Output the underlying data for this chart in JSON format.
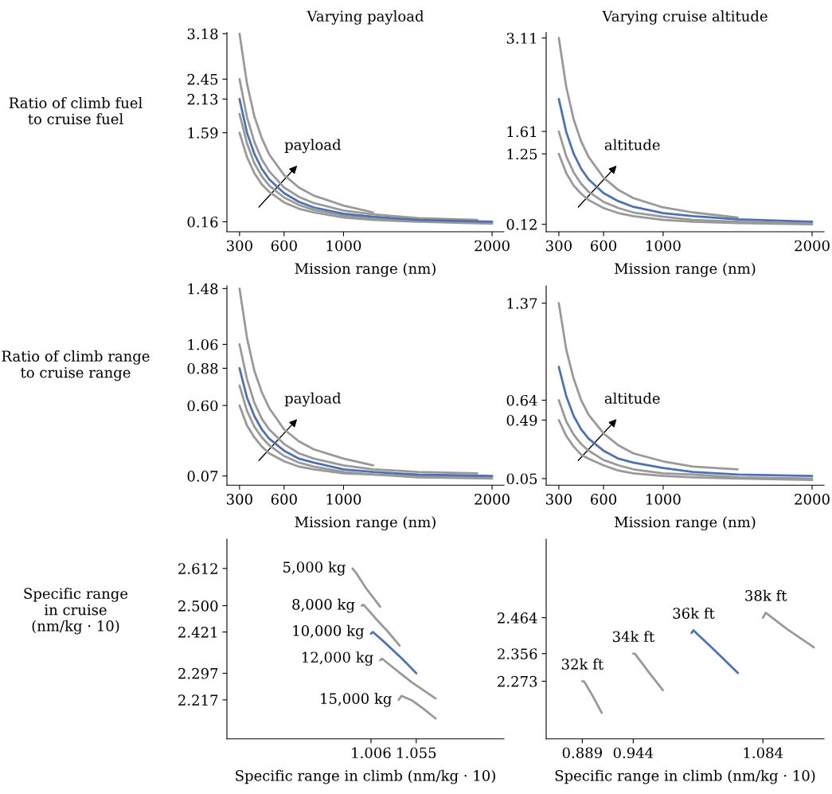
{
  "chart_data": [
    {
      "type": "line",
      "title": "Varying payload",
      "xlabel": "Mission range (nm)",
      "ylabel": "Ratio of climb fuel\nto cruise fuel",
      "xlim": [
        215,
        2080
      ],
      "ylim": [
        0,
        3.2
      ],
      "xticks": [
        300,
        600,
        1000,
        2000
      ],
      "yticks": [
        0.16,
        1.59,
        2.13,
        2.45,
        3.18
      ],
      "annotations": [
        "payload"
      ],
      "series": [
        {
          "color": "#999999",
          "x": [
            300,
            350,
            400,
            450,
            500,
            600,
            700,
            800,
            1000,
            1200
          ],
          "values": [
            3.18,
            2.38,
            1.85,
            1.5,
            1.24,
            0.91,
            0.71,
            0.58,
            0.42,
            0.31
          ]
        },
        {
          "color": "#999999",
          "x": [
            300,
            350,
            400,
            450,
            500,
            600,
            700,
            800,
            1000,
            1200,
            1500,
            1900
          ],
          "values": [
            2.45,
            1.84,
            1.44,
            1.16,
            0.97,
            0.71,
            0.56,
            0.46,
            0.34,
            0.28,
            0.22,
            0.19
          ]
        },
        {
          "color": "#999999",
          "x": [
            300,
            350,
            400,
            450,
            500,
            600,
            700,
            800,
            1000,
            1200,
            1500,
            2000
          ],
          "values": [
            1.89,
            1.42,
            1.1,
            0.89,
            0.74,
            0.55,
            0.43,
            0.35,
            0.26,
            0.21,
            0.17,
            0.14
          ]
        },
        {
          "color": "#999999",
          "x": [
            300,
            350,
            400,
            450,
            500,
            600,
            700,
            800,
            1000,
            1200,
            1500,
            2000
          ],
          "values": [
            1.59,
            1.2,
            0.94,
            0.76,
            0.64,
            0.47,
            0.37,
            0.31,
            0.23,
            0.19,
            0.16,
            0.13
          ]
        },
        {
          "color": "#4c72b0",
          "x": [
            300,
            350,
            400,
            450,
            500,
            600,
            700,
            800,
            1000,
            1200,
            1500,
            2000
          ],
          "values": [
            2.13,
            1.59,
            1.25,
            1.01,
            0.84,
            0.62,
            0.48,
            0.39,
            0.29,
            0.24,
            0.19,
            0.16
          ]
        }
      ]
    },
    {
      "type": "line",
      "title": "Varying cruise altitude",
      "xlabel": "Mission range (nm)",
      "xlim": [
        215,
        2080
      ],
      "ylim": [
        0,
        3.2
      ],
      "xticks": [
        300,
        600,
        1000,
        2000
      ],
      "yticks": [
        0.12,
        1.25,
        1.61,
        3.11
      ],
      "annotations": [
        "altitude"
      ],
      "series": [
        {
          "color": "#999999",
          "x": [
            300,
            350,
            400,
            450,
            500,
            600,
            700,
            800,
            1000,
            1200,
            1500
          ],
          "values": [
            3.11,
            2.32,
            1.8,
            1.45,
            1.2,
            0.87,
            0.67,
            0.54,
            0.39,
            0.31,
            0.23
          ]
        },
        {
          "color": "#999999",
          "x": [
            300,
            350,
            400,
            450,
            500,
            600,
            700,
            800,
            1000,
            1200,
            1500,
            2000
          ],
          "values": [
            1.61,
            1.21,
            0.95,
            0.77,
            0.64,
            0.48,
            0.38,
            0.31,
            0.24,
            0.19,
            0.16,
            0.13
          ]
        },
        {
          "color": "#999999",
          "x": [
            300,
            350,
            400,
            450,
            500,
            600,
            700,
            800,
            1000,
            1200,
            1500,
            2000
          ],
          "values": [
            1.25,
            0.94,
            0.74,
            0.61,
            0.51,
            0.38,
            0.3,
            0.25,
            0.19,
            0.16,
            0.14,
            0.12
          ]
        },
        {
          "color": "#4c72b0",
          "x": [
            300,
            350,
            400,
            450,
            500,
            600,
            700,
            800,
            1000,
            1200,
            1500,
            2000
          ],
          "values": [
            2.13,
            1.6,
            1.25,
            1.01,
            0.84,
            0.62,
            0.49,
            0.4,
            0.3,
            0.25,
            0.2,
            0.16
          ]
        }
      ]
    },
    {
      "type": "line",
      "xlabel": "Mission range (nm)",
      "ylabel": "Ratio of climb range\nto cruise range",
      "xlim": [
        215,
        2080
      ],
      "ylim": [
        0,
        1.5
      ],
      "xticks": [
        300,
        600,
        1000,
        2000
      ],
      "yticks": [
        0.07,
        {
          "value": 0.6,
          "label": "0.60"
        },
        0.88,
        1.06,
        1.48
      ],
      "annotations": [
        "payload"
      ],
      "series": [
        {
          "color": "#999999",
          "x": [
            300,
            350,
            400,
            450,
            500,
            600,
            700,
            800,
            1000,
            1200
          ],
          "values": [
            1.48,
            1.11,
            0.86,
            0.7,
            0.58,
            0.42,
            0.33,
            0.27,
            0.2,
            0.15
          ]
        },
        {
          "color": "#999999",
          "x": [
            300,
            350,
            400,
            450,
            500,
            600,
            700,
            800,
            1000,
            1200,
            1500,
            1900
          ],
          "values": [
            1.06,
            0.8,
            0.62,
            0.5,
            0.42,
            0.31,
            0.24,
            0.2,
            0.15,
            0.12,
            0.1,
            0.09
          ]
        },
        {
          "color": "#999999",
          "x": [
            300,
            350,
            400,
            450,
            500,
            600,
            700,
            800,
            1000,
            1200,
            1500,
            2000
          ],
          "values": [
            0.75,
            0.56,
            0.44,
            0.36,
            0.3,
            0.22,
            0.17,
            0.14,
            0.1,
            0.08,
            0.07,
            0.06
          ]
        },
        {
          "color": "#999999",
          "x": [
            300,
            350,
            400,
            450,
            500,
            600,
            700,
            800,
            1000,
            1200,
            1500,
            2000
          ],
          "values": [
            0.6,
            0.45,
            0.36,
            0.29,
            0.24,
            0.18,
            0.14,
            0.12,
            0.09,
            0.08,
            0.06,
            0.05
          ]
        },
        {
          "color": "#4c72b0",
          "x": [
            300,
            350,
            400,
            450,
            500,
            600,
            700,
            800,
            1000,
            1200,
            1500,
            2000
          ],
          "values": [
            0.88,
            0.66,
            0.52,
            0.42,
            0.35,
            0.26,
            0.2,
            0.17,
            0.12,
            0.1,
            0.08,
            0.07
          ]
        }
      ]
    },
    {
      "type": "line",
      "xlabel": "Mission range (nm)",
      "xlim": [
        215,
        2080
      ],
      "ylim": [
        0,
        1.5
      ],
      "xticks": [
        300,
        600,
        1000,
        2000
      ],
      "yticks": [
        0.05,
        0.49,
        0.64,
        1.37
      ],
      "annotations": [
        "altitude"
      ],
      "series": [
        {
          "color": "#999999",
          "x": [
            300,
            350,
            400,
            450,
            500,
            600,
            700,
            800,
            1000,
            1200,
            1500
          ],
          "values": [
            1.37,
            1.02,
            0.8,
            0.64,
            0.53,
            0.39,
            0.3,
            0.24,
            0.18,
            0.14,
            0.12
          ]
        },
        {
          "color": "#999999",
          "x": [
            300,
            350,
            400,
            450,
            500,
            600,
            700,
            800,
            1000,
            1200,
            1500,
            2000
          ],
          "values": [
            0.64,
            0.48,
            0.38,
            0.31,
            0.26,
            0.19,
            0.15,
            0.12,
            0.09,
            0.08,
            0.06,
            0.05
          ]
        },
        {
          "color": "#999999",
          "x": [
            300,
            350,
            400,
            450,
            500,
            600,
            700,
            800,
            1000,
            1200,
            1500,
            2000
          ],
          "values": [
            0.49,
            0.37,
            0.29,
            0.23,
            0.2,
            0.15,
            0.11,
            0.09,
            0.07,
            0.06,
            0.05,
            0.04
          ]
        },
        {
          "color": "#4c72b0",
          "x": [
            300,
            350,
            400,
            450,
            500,
            600,
            700,
            800,
            1000,
            1200,
            1500,
            2000
          ],
          "values": [
            0.89,
            0.67,
            0.52,
            0.42,
            0.35,
            0.26,
            0.2,
            0.17,
            0.13,
            0.1,
            0.08,
            0.07
          ]
        }
      ]
    },
    {
      "type": "line",
      "xlabel": "Specific range in climb (nm/kg · 10)",
      "ylabel": "Specific range\nin cruise\n(nm/kg · 10)",
      "xlim": [
        0.85,
        1.15
      ],
      "ylim": [
        2.1,
        2.7
      ],
      "xticks": [
        1.006,
        1.055
      ],
      "yticks": [
        2.217,
        2.297,
        2.421,
        {
          "value": 2.5,
          "label": "2.500"
        },
        2.612
      ],
      "annotations": [
        {
          "text": "5,000 kg",
          "x": 0.986,
          "y": 2.612
        },
        {
          "text": "8,000 kg",
          "x": 0.996,
          "y": 2.5
        },
        {
          "text": "10,000 kg",
          "x": 1.006,
          "y": 2.421
        },
        {
          "text": "12,000 kg",
          "x": 1.016,
          "y": 2.341
        },
        {
          "text": "15,000 kg",
          "x": 1.036,
          "y": 2.217
        }
      ],
      "series": [
        {
          "color": "#999999",
          "x": [
            0.986,
            0.99,
            1.0,
            1.016
          ],
          "values": [
            2.612,
            2.598,
            2.555,
            2.497
          ]
        },
        {
          "color": "#999999",
          "x": [
            0.996,
            0.998,
            1.01,
            1.024,
            1.037
          ],
          "values": [
            2.5,
            2.503,
            2.465,
            2.423,
            2.38
          ]
        },
        {
          "color": "#999999",
          "x": [
            1.016,
            1.018,
            1.03,
            1.05,
            1.076
          ],
          "values": [
            2.336,
            2.341,
            2.314,
            2.27,
            2.221
          ]
        },
        {
          "color": "#999999",
          "x": [
            1.036,
            1.039,
            1.05,
            1.063,
            1.076
          ],
          "values": [
            2.217,
            2.229,
            2.216,
            2.19,
            2.161
          ]
        },
        {
          "color": "#4c72b0",
          "x": [
            1.006,
            1.008,
            1.02,
            1.04,
            1.055
          ],
          "values": [
            2.416,
            2.421,
            2.392,
            2.34,
            2.297
          ]
        }
      ]
    },
    {
      "type": "line",
      "xlabel": "Specific range in climb (nm/kg · 10)",
      "xlim": [
        0.85,
        1.15
      ],
      "ylim": [
        2.1,
        2.7
      ],
      "xticks": [
        0.889,
        0.944,
        1.084
      ],
      "yticks": [
        2.273,
        2.356,
        2.464
      ],
      "annotations": [
        {
          "text": "32k ft",
          "x": 0.889,
          "y": 2.273
        },
        {
          "text": "34k ft",
          "x": 0.944,
          "y": 2.356
        },
        {
          "text": "36k ft",
          "x": 1.009,
          "y": 2.426
        },
        {
          "text": "38k ft",
          "x": 1.087,
          "y": 2.479
        }
      ],
      "series": [
        {
          "color": "#999999",
          "x": [
            0.889,
            0.891,
            0.9,
            0.91
          ],
          "values": [
            2.273,
            2.272,
            2.23,
            2.178
          ]
        },
        {
          "color": "#999999",
          "x": [
            0.944,
            0.946,
            0.96,
            0.976
          ],
          "values": [
            2.356,
            2.355,
            2.303,
            2.246
          ]
        },
        {
          "color": "#999999",
          "x": [
            1.084,
            1.087,
            1.11,
            1.139
          ],
          "values": [
            2.464,
            2.479,
            2.43,
            2.375
          ]
        },
        {
          "color": "#4c72b0",
          "x": [
            1.007,
            1.009,
            1.03,
            1.057
          ],
          "values": [
            2.418,
            2.426,
            2.371,
            2.298
          ]
        }
      ]
    }
  ]
}
